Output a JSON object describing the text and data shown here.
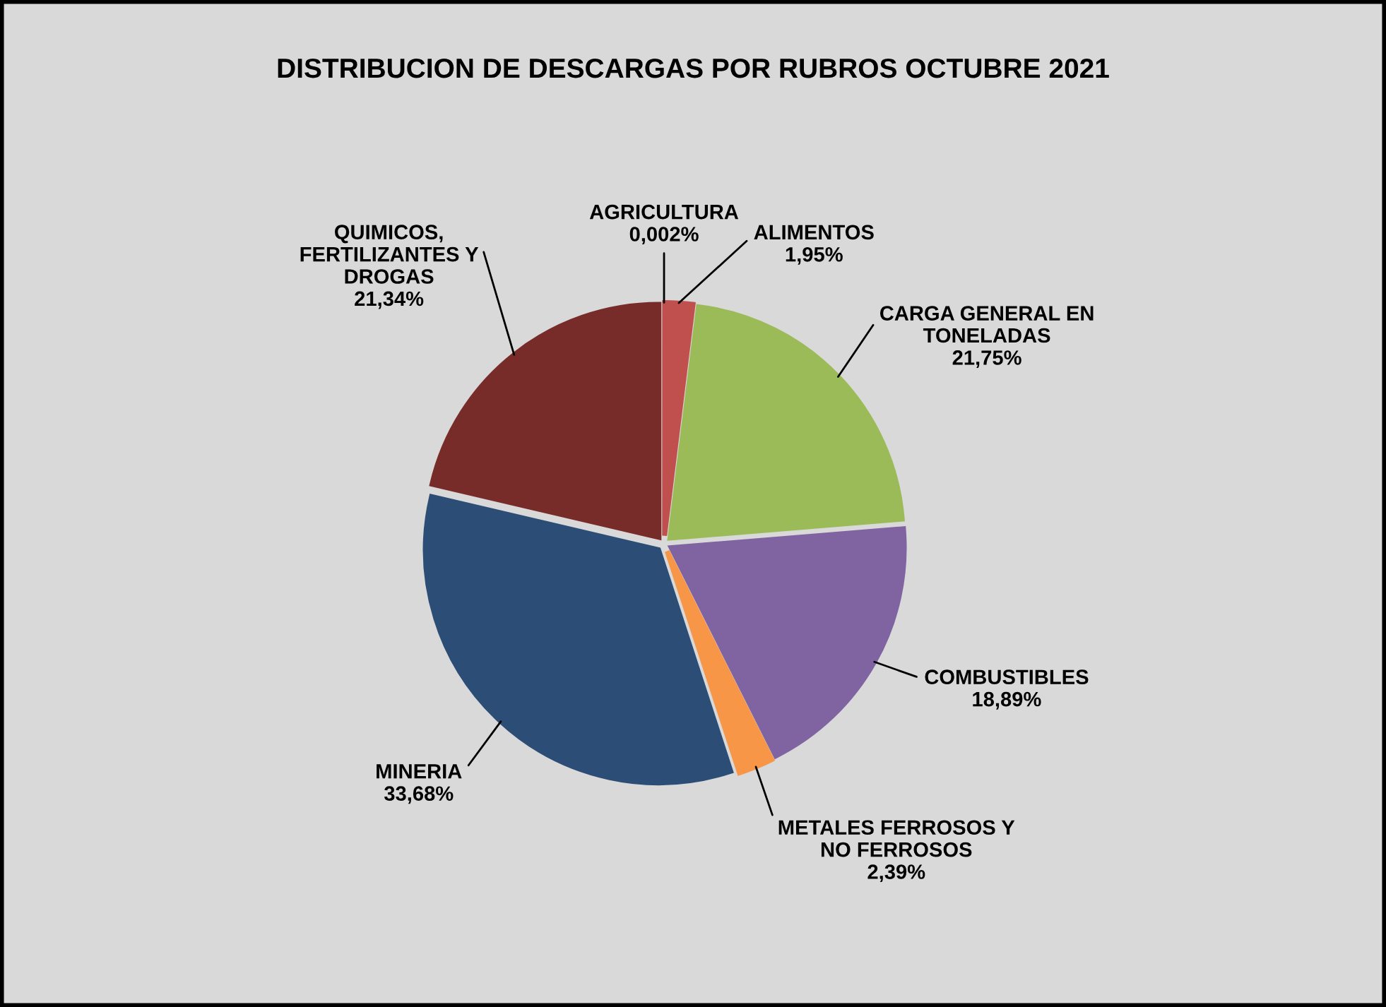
{
  "chart_data": {
    "type": "pie",
    "title": "DISTRIBUCION DE DESCARGAS POR RUBROS OCTUBRE 2021",
    "categories": [
      "AGRICULTURA",
      "ALIMENTOS",
      "CARGA GENERAL EN\nTONELADAS",
      "COMBUSTIBLES",
      "METALES FERROSOS Y\nNO FERROSOS",
      "MINERIA",
      "QUIMICOS,\nFERTILIZANTES Y\nDROGAS"
    ],
    "values": [
      0.002,
      1.95,
      21.75,
      18.89,
      2.39,
      33.68,
      21.34
    ],
    "value_labels": [
      "0,002%",
      "1,95%",
      "21,75%",
      "18,89%",
      "2,39%",
      "33,68%",
      "21,34%"
    ],
    "colors": [
      "#f2f2f2",
      "#c0504d",
      "#9bbb59",
      "#8064a2",
      "#f79646",
      "#2c4d75",
      "#772c2a"
    ]
  }
}
